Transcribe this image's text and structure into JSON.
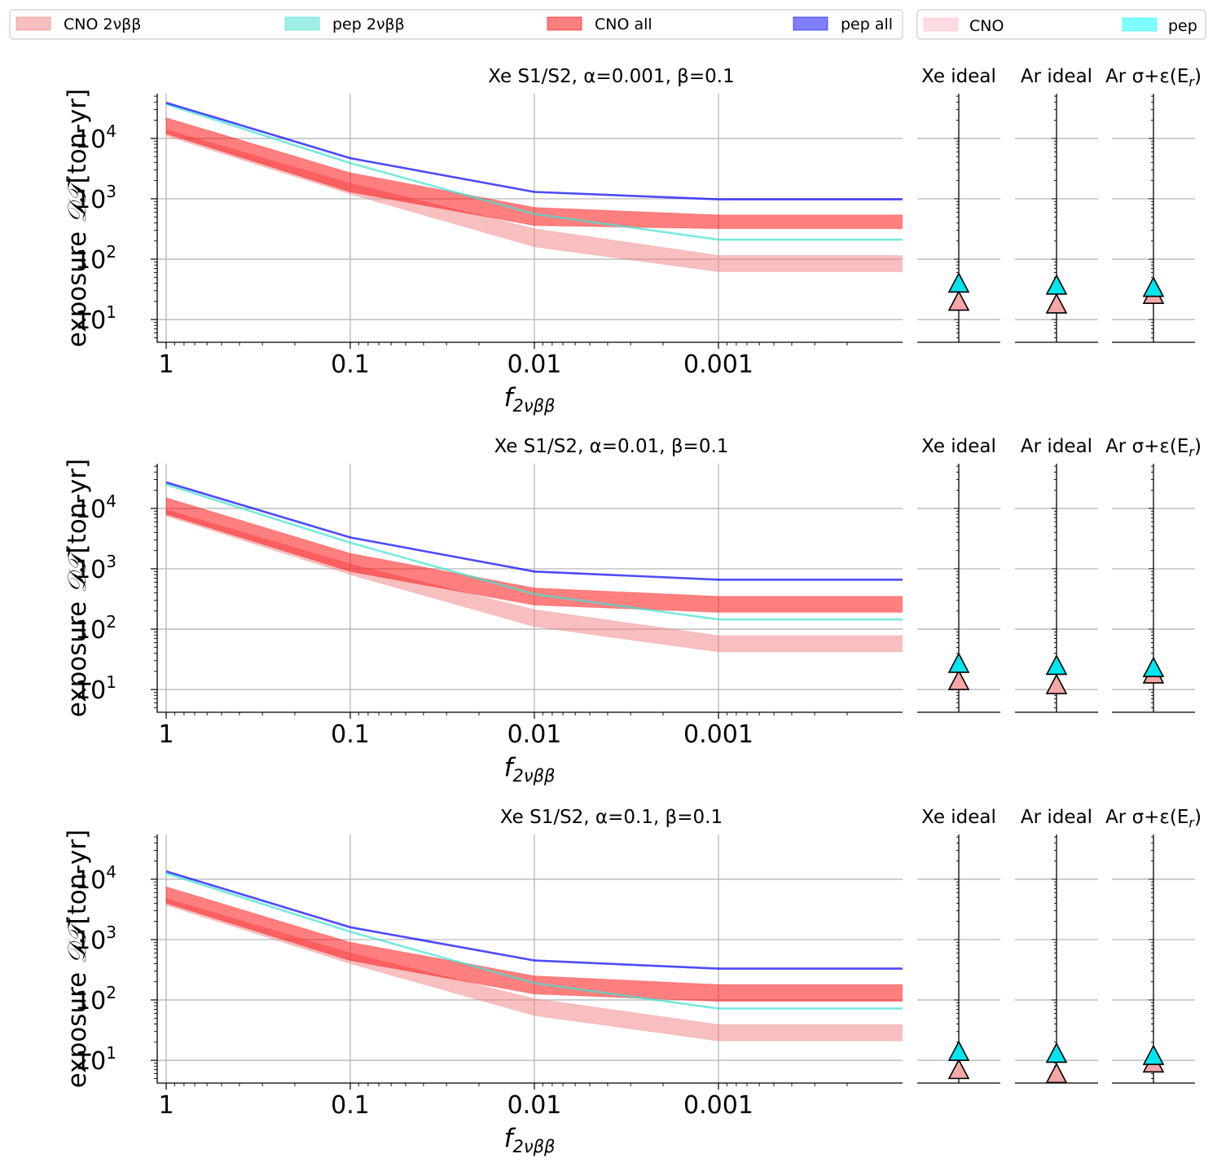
{
  "legend_main": {
    "items": [
      {
        "label": "CNO 2νββ",
        "kind": "band",
        "color": "#f08080",
        "opacity": 0.5
      },
      {
        "label": "pep 2νββ",
        "kind": "line",
        "color": "#40e0d0",
        "opacity": 0.5
      },
      {
        "label": "CNO all",
        "kind": "band",
        "color": "#ff0000",
        "opacity": 0.5
      },
      {
        "label": "pep all",
        "kind": "line",
        "color": "#0000ff",
        "opacity": 0.5
      }
    ]
  },
  "legend_side": {
    "items": [
      {
        "label": "CNO",
        "color": "#ffb6c1",
        "opacity": 0.5
      },
      {
        "label": "pep",
        "color": "#00ffff",
        "opacity": 0.5
      }
    ]
  },
  "axes": {
    "xlabel_main": "f",
    "xlabel_sub": "2νββ",
    "ylabel_prefix": "exposure ",
    "ylabel_symbol": "𝒟𝒯",
    "ylabel_suffix": "[ton-yr]",
    "xtick_labels": [
      "1",
      "0.1",
      "0.01",
      "0.001"
    ],
    "ytick_base": "10",
    "ytick_exps": [
      "1",
      "2",
      "3",
      "4"
    ],
    "side_titles": [
      "Xe ideal",
      "Ar ideal",
      "Ar σ+ε(E_r)"
    ],
    "side_title_prefix": "Ar σ+ε(E",
    "side_title_sub": "r",
    "side_title_suffix": ")"
  },
  "colors": {
    "cno_2vbb": "#f08080",
    "pep_2vbb": "#40e0d0",
    "cno_all": "#ff0000",
    "pep_all": "#0000ff",
    "marker_cno": "#f4a7a7",
    "marker_pep": "#00e5ee"
  },
  "chart_data": [
    {
      "type": "line",
      "title": "Xe S1/S2, α=0.001, β=0.1",
      "xscale": "log (reversed)",
      "yscale": "log",
      "x": [
        1,
        0.1,
        0.01,
        0.001,
        5e-05
      ],
      "xlim": [
        1.07,
        5e-05
      ],
      "ylim": [
        4.2,
        55000
      ],
      "grid": true,
      "series": [
        {
          "name": "CNO 2νββ",
          "kind": "band",
          "lower": [
            11000,
            1200,
            160,
            62,
            62
          ],
          "upper": [
            14000,
            1800,
            320,
            115,
            115
          ]
        },
        {
          "name": "CNO all",
          "kind": "band",
          "lower": [
            12000,
            1300,
            360,
            320,
            320
          ],
          "upper": [
            22000,
            2700,
            720,
            540,
            540
          ]
        },
        {
          "name": "pep 2νββ",
          "kind": "line",
          "values": [
            37000,
            3900,
            560,
            210,
            210
          ]
        },
        {
          "name": "pep all",
          "kind": "line",
          "values": [
            39000,
            4700,
            1300,
            980,
            980
          ]
        }
      ],
      "markers": [
        {
          "panel": "Xe ideal",
          "CNO": 20,
          "pep": 40
        },
        {
          "panel": "Ar ideal",
          "CNO": 18,
          "pep": 37
        },
        {
          "panel": "Ar σ+ε(E_r)",
          "CNO": 26,
          "pep": 34
        }
      ]
    },
    {
      "type": "line",
      "title": "Xe S1/S2, α=0.01, β=0.1",
      "xscale": "log (reversed)",
      "yscale": "log",
      "x": [
        1,
        0.1,
        0.01,
        0.001,
        5e-05
      ],
      "xlim": [
        1.07,
        5e-05
      ],
      "ylim": [
        4.2,
        55000
      ],
      "grid": true,
      "series": [
        {
          "name": "CNO 2νββ",
          "kind": "band",
          "lower": [
            7500,
            800,
            110,
            42,
            42
          ],
          "upper": [
            9500,
            1200,
            210,
            78,
            78
          ]
        },
        {
          "name": "CNO all",
          "kind": "band",
          "lower": [
            8000,
            900,
            250,
            190,
            190
          ],
          "upper": [
            15000,
            1800,
            480,
            350,
            350
          ]
        },
        {
          "name": "pep 2νββ",
          "kind": "line",
          "values": [
            25000,
            2700,
            380,
            145,
            145
          ]
        },
        {
          "name": "pep all",
          "kind": "line",
          "values": [
            27000,
            3300,
            900,
            660,
            660
          ]
        }
      ],
      "markers": [
        {
          "panel": "Xe ideal",
          "CNO": 14,
          "pep": 27
        },
        {
          "panel": "Ar ideal",
          "CNO": 12,
          "pep": 25
        },
        {
          "panel": "Ar σ+ε(E_r)",
          "CNO": 18,
          "pep": 23
        }
      ]
    },
    {
      "type": "line",
      "title": "Xe S1/S2, α=0.1, β=0.1",
      "xscale": "log (reversed)",
      "yscale": "log",
      "x": [
        1,
        0.1,
        0.01,
        0.001,
        5e-05
      ],
      "xlim": [
        1.07,
        5e-05
      ],
      "ylim": [
        4.2,
        55000
      ],
      "grid": true,
      "series": [
        {
          "name": "CNO 2νββ",
          "kind": "band",
          "lower": [
            3700,
            400,
            55,
            21,
            21
          ],
          "upper": [
            4800,
            600,
            105,
            39,
            39
          ]
        },
        {
          "name": "CNO all",
          "kind": "band",
          "lower": [
            4000,
            450,
            125,
            95,
            95
          ],
          "upper": [
            7500,
            900,
            250,
            180,
            180
          ]
        },
        {
          "name": "pep 2νββ",
          "kind": "line",
          "values": [
            12500,
            1350,
            190,
            72,
            72
          ]
        },
        {
          "name": "pep all",
          "kind": "line",
          "values": [
            13500,
            1600,
            450,
            330,
            330
          ]
        }
      ],
      "markers": [
        {
          "panel": "Xe ideal",
          "CNO": 7,
          "pep": 14
        },
        {
          "panel": "Ar ideal",
          "CNO": 6,
          "pep": 13
        },
        {
          "panel": "Ar σ+ε(E_r)",
          "CNO": 9,
          "pep": 12
        }
      ]
    }
  ]
}
